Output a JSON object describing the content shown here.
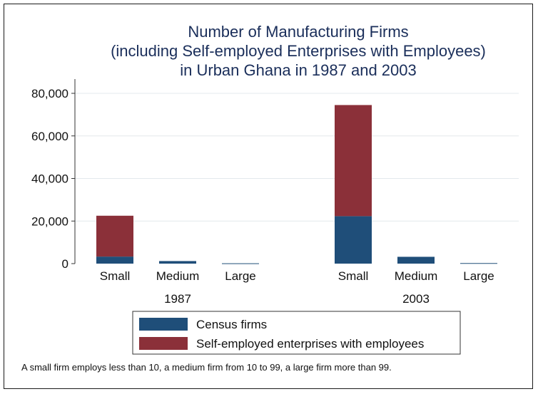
{
  "chart_data": {
    "type": "bar",
    "stacked": true,
    "title_lines": [
      "Number of Manufacturing Firms",
      "(including Self-employed Enterprises with Employees)",
      "in Urban Ghana in 1987 and 2003"
    ],
    "groups": [
      {
        "label": "1987",
        "categories": [
          "Small",
          "Medium",
          "Large"
        ]
      },
      {
        "label": "2003",
        "categories": [
          "Small",
          "Medium",
          "Large"
        ]
      }
    ],
    "series": [
      {
        "name": "Census firms",
        "color": "#1f4e79",
        "values": [
          [
            3300,
            1200,
            150
          ],
          [
            22300,
            3200,
            250
          ]
        ]
      },
      {
        "name": "Self-employed enterprises with employees",
        "color": "#8b3039",
        "values": [
          [
            19200,
            0,
            0
          ],
          [
            52200,
            0,
            0
          ]
        ]
      }
    ],
    "ylim": [
      0,
      85000
    ],
    "yticks": [
      0,
      20000,
      40000,
      60000,
      80000
    ],
    "ytick_labels": [
      "0",
      "20,000",
      "40,000",
      "60,000",
      "80,000"
    ],
    "grid": true,
    "legend_position": "bottom",
    "note": "A small firm employs less than 10, a medium firm from 10 to 99, a large firm more than 99."
  }
}
